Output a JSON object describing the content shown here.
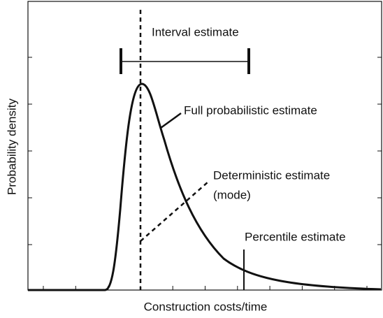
{
  "x_label": "Construction costs/time",
  "y_label": "Probability density",
  "annotations": {
    "interval": "Interval estimate",
    "full": "Full probabilistic estimate",
    "deterministic_line1": "Deterministic estimate",
    "deterministic_line2": "(mode)",
    "percentile": "Percentile estimate"
  }
}
